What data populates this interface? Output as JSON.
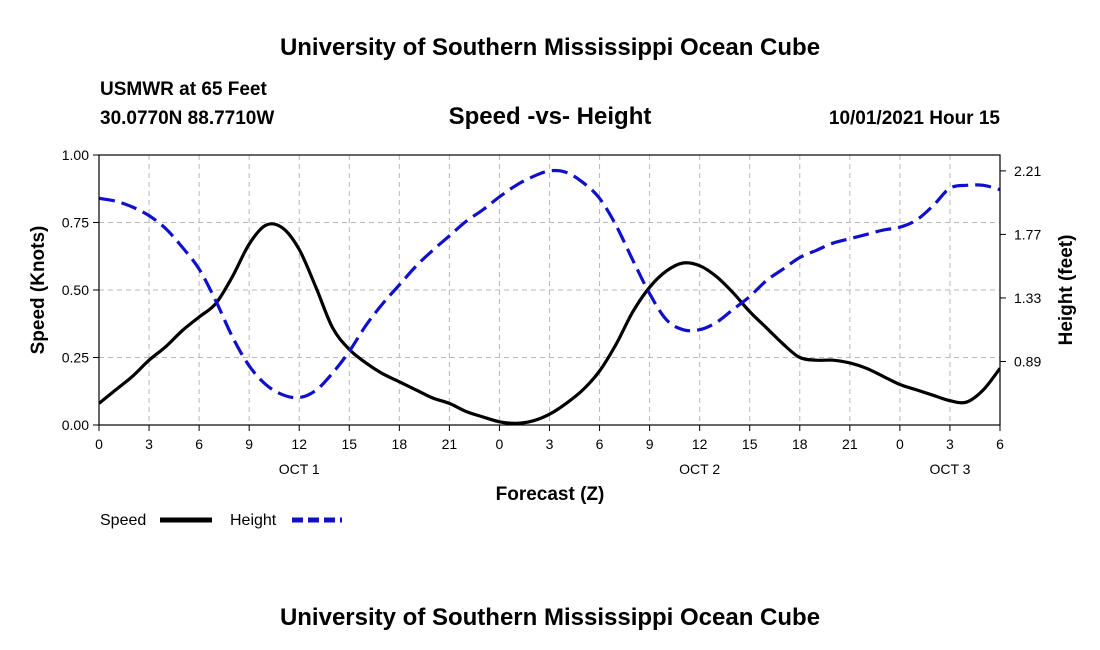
{
  "header": {
    "title": "University of Southern Mississippi Ocean Cube",
    "station": "USMWR at 65 Feet",
    "coords": "30.0770N  88.7710W",
    "date": "10/01/2021 Hour 15"
  },
  "footer": {
    "title": "University of Southern Mississippi Ocean Cube"
  },
  "chart_data": {
    "type": "line",
    "title": "Speed -vs- Height",
    "xlabel": "Forecast (Z)",
    "ylabel": "Speed (Knots)",
    "y2label": "Height (feet)",
    "xlim": [
      0,
      54
    ],
    "ylim": [
      0,
      1
    ],
    "y2lim": [
      0.45,
      2.32
    ],
    "x_ticks": [
      0,
      3,
      6,
      9,
      12,
      15,
      18,
      21,
      24,
      27,
      30,
      33,
      36,
      39,
      42,
      45,
      48,
      51,
      54
    ],
    "x_tick_labels": [
      "0",
      "3",
      "6",
      "9",
      "12",
      "15",
      "18",
      "21",
      "0",
      "3",
      "6",
      "9",
      "12",
      "15",
      "18",
      "21",
      "0",
      "3",
      "6"
    ],
    "y_ticks": [
      0,
      0.25,
      0.5,
      0.75,
      1
    ],
    "y_tick_labels": [
      "0.00",
      "0.25",
      "0.50",
      "0.75",
      "1.00"
    ],
    "y2_ticks": [
      0.89,
      1.33,
      1.77,
      2.21
    ],
    "y2_tick_labels": [
      "0.89",
      "1.33",
      "1.77",
      "2.21"
    ],
    "day_labels": [
      {
        "x": 12,
        "label": "OCT 1"
      },
      {
        "x": 36,
        "label": "OCT 2"
      },
      {
        "x": 51,
        "label": "OCT 3"
      }
    ],
    "grid": true,
    "legend_position": "bottom-left",
    "series": [
      {
        "name": "Speed",
        "axis": "left",
        "color": "#000000",
        "dash": "solid",
        "x": [
          0,
          1,
          2,
          3,
          4,
          5,
          6,
          7,
          8,
          9,
          10,
          11,
          12,
          13,
          14,
          15,
          16,
          17,
          18,
          19,
          20,
          21,
          22,
          23,
          24,
          25,
          26,
          27,
          28,
          29,
          30,
          31,
          32,
          33,
          34,
          35,
          36,
          37,
          38,
          39,
          40,
          41,
          42,
          43,
          44,
          45,
          46,
          47,
          48,
          49,
          50,
          51,
          52,
          53,
          54
        ],
        "values": [
          0.08,
          0.13,
          0.18,
          0.24,
          0.29,
          0.35,
          0.4,
          0.45,
          0.55,
          0.67,
          0.74,
          0.73,
          0.65,
          0.51,
          0.36,
          0.28,
          0.23,
          0.19,
          0.16,
          0.13,
          0.1,
          0.08,
          0.05,
          0.03,
          0.012,
          0.006,
          0.015,
          0.04,
          0.08,
          0.13,
          0.2,
          0.3,
          0.42,
          0.51,
          0.57,
          0.6,
          0.59,
          0.55,
          0.49,
          0.42,
          0.36,
          0.3,
          0.25,
          0.24,
          0.24,
          0.23,
          0.21,
          0.18,
          0.15,
          0.13,
          0.11,
          0.09,
          0.085,
          0.13,
          0.21
        ]
      },
      {
        "name": "Height",
        "axis": "right",
        "color": "#1010cc",
        "dash": "dashed",
        "x": [
          0,
          1,
          2,
          3,
          4,
          5,
          6,
          7,
          8,
          9,
          10,
          11,
          12,
          13,
          14,
          15,
          16,
          17,
          18,
          19,
          20,
          21,
          22,
          23,
          24,
          25,
          26,
          27,
          28,
          29,
          30,
          31,
          32,
          33,
          34,
          35,
          36,
          37,
          38,
          39,
          40,
          41,
          42,
          43,
          44,
          45,
          46,
          47,
          48,
          49,
          50,
          51,
          52,
          53,
          54
        ],
        "values": [
          2.02,
          2.0,
          1.96,
          1.9,
          1.81,
          1.68,
          1.53,
          1.31,
          1.06,
          0.86,
          0.73,
          0.66,
          0.64,
          0.69,
          0.81,
          0.96,
          1.14,
          1.29,
          1.42,
          1.55,
          1.66,
          1.76,
          1.86,
          1.94,
          2.03,
          2.11,
          2.17,
          2.21,
          2.2,
          2.13,
          2.02,
          1.83,
          1.59,
          1.36,
          1.18,
          1.11,
          1.11,
          1.16,
          1.25,
          1.34,
          1.45,
          1.53,
          1.61,
          1.66,
          1.71,
          1.74,
          1.77,
          1.8,
          1.82,
          1.87,
          1.97,
          2.09,
          2.11,
          2.11,
          2.08
        ]
      }
    ]
  }
}
